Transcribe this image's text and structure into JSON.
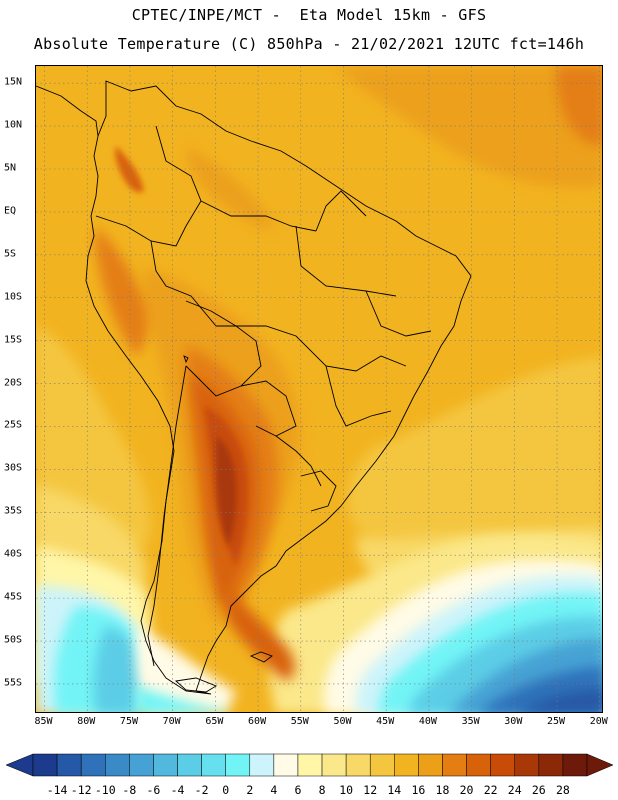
{
  "title_line1": "CPTEC/INPE/MCT -  Eta Model 15km - GFS",
  "title_line2": "Absolute Temperature (C) 850hPa - 21/02/2021 12UTC fct=146h",
  "lat_labels": [
    "15N",
    "10N",
    "5N",
    "EQ",
    "5S",
    "10S",
    "15S",
    "20S",
    "25S",
    "30S",
    "35S",
    "40S",
    "45S",
    "50S",
    "55S"
  ],
  "lat_values": [
    15,
    10,
    5,
    0,
    -5,
    -10,
    -15,
    -20,
    -25,
    -30,
    -35,
    -40,
    -45,
    -50,
    -55
  ],
  "lon_labels": [
    "85W",
    "80W",
    "75W",
    "70W",
    "65W",
    "60W",
    "55W",
    "50W",
    "45W",
    "40W",
    "35W",
    "30W",
    "25W",
    "20W"
  ],
  "lon_values": [
    -85,
    -80,
    -75,
    -70,
    -65,
    -60,
    -55,
    -50,
    -45,
    -40,
    -35,
    -30,
    -25,
    -20
  ],
  "colorbar": {
    "labels": [
      "-14",
      "-12",
      "-10",
      "-8",
      "-6",
      "-4",
      "-2",
      "0",
      "2",
      "4",
      "6",
      "8",
      "10",
      "12",
      "14",
      "16",
      "18",
      "20",
      "22",
      "24",
      "26",
      "28"
    ],
    "colors": [
      "#1c3b8c",
      "#2558a6",
      "#2f72ba",
      "#3a8ac8",
      "#46a2d4",
      "#52b8de",
      "#5ccde6",
      "#66e0ee",
      "#72f4f6",
      "#ccf4fa",
      "#fffbe6",
      "#fff6a8",
      "#fbe88a",
      "#f8d866",
      "#f4c640",
      "#f2b320",
      "#eca01a",
      "#e47e12",
      "#d8620a",
      "#c84c08",
      "#a83808",
      "#8a2808",
      "#6e1a0a"
    ],
    "min_color": "#1c3b8c",
    "max_color": "#6e1a0a"
  },
  "map": {
    "lat_range": [
      -58.5,
      17
    ],
    "lon_range": [
      -86,
      -19.5
    ],
    "base_color": "#f2b320"
  }
}
